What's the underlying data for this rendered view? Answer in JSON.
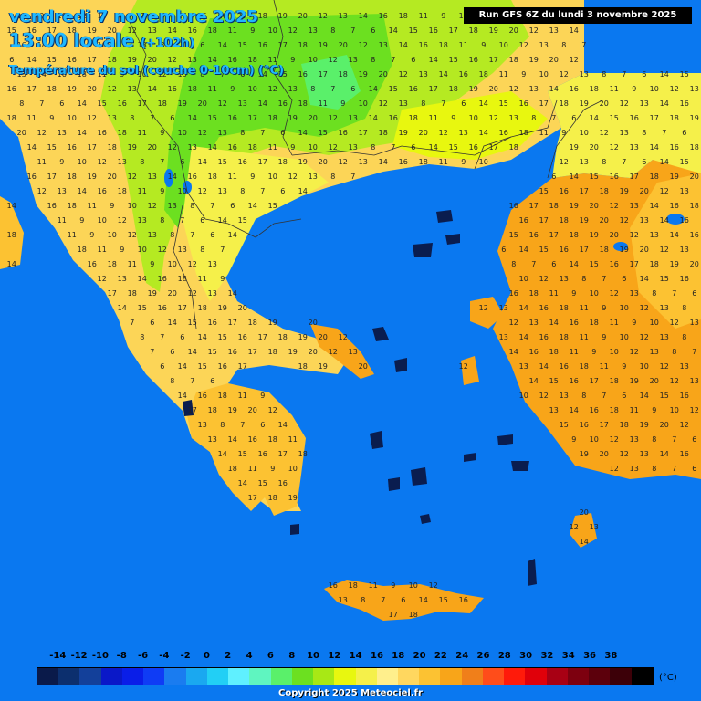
{
  "header": {
    "date": "vendredi 7 novembre 2025",
    "time": "13:00 locale",
    "offset": "(+102h)",
    "parameter": "Température du sol (couche 0-10cm) (°C)",
    "run": "Run GFS 6Z du lundi 3 novembre 2025"
  },
  "legend": {
    "ticks": [
      "-14",
      "-12",
      "-10",
      "-8",
      "-6",
      "-4",
      "-2",
      "0",
      "2",
      "4",
      "6",
      "8",
      "10",
      "12",
      "14",
      "16",
      "18",
      "20",
      "22",
      "24",
      "26",
      "28",
      "30",
      "32",
      "34",
      "36",
      "38"
    ],
    "unit": "(°C)",
    "colors": [
      "#0a1a4a",
      "#0c2f6e",
      "#13409a",
      "#0a18c8",
      "#0a1ee8",
      "#0f3cf5",
      "#1a7cf0",
      "#1aa8f0",
      "#22cff5",
      "#5ff0ff",
      "#5ff5c0",
      "#5af06a",
      "#6ce020",
      "#a8e815",
      "#e8f70f",
      "#f5f04a",
      "#ffef8c",
      "#ffd75f",
      "#fcc232",
      "#f8a519",
      "#f07f1a",
      "#ff4d1a",
      "#ff1a0a",
      "#e0000a",
      "#a80014",
      "#7d000f",
      "#5c000c",
      "#3c0008",
      "#000000"
    ]
  },
  "map": {
    "sea_color": "#0a78f0",
    "island_color": "#0a1d4f",
    "border_color": "#333333",
    "samples": [
      {
        "v": "11"
      },
      {
        "v": "9"
      },
      {
        "v": "10"
      },
      {
        "v": "12"
      },
      {
        "v": "13"
      },
      {
        "v": "8"
      },
      {
        "v": "7"
      },
      {
        "v": "6"
      },
      {
        "v": "14"
      },
      {
        "v": "15"
      },
      {
        "v": "16"
      },
      {
        "v": "17"
      },
      {
        "v": "18"
      },
      {
        "v": "19"
      },
      {
        "v": "20"
      },
      {
        "v": "12"
      },
      {
        "v": "13"
      },
      {
        "v": "14"
      },
      {
        "v": "16"
      },
      {
        "v": "18"
      }
    ]
  },
  "footer": {
    "copyright": "Copyright 2025 Meteociel.fr"
  }
}
